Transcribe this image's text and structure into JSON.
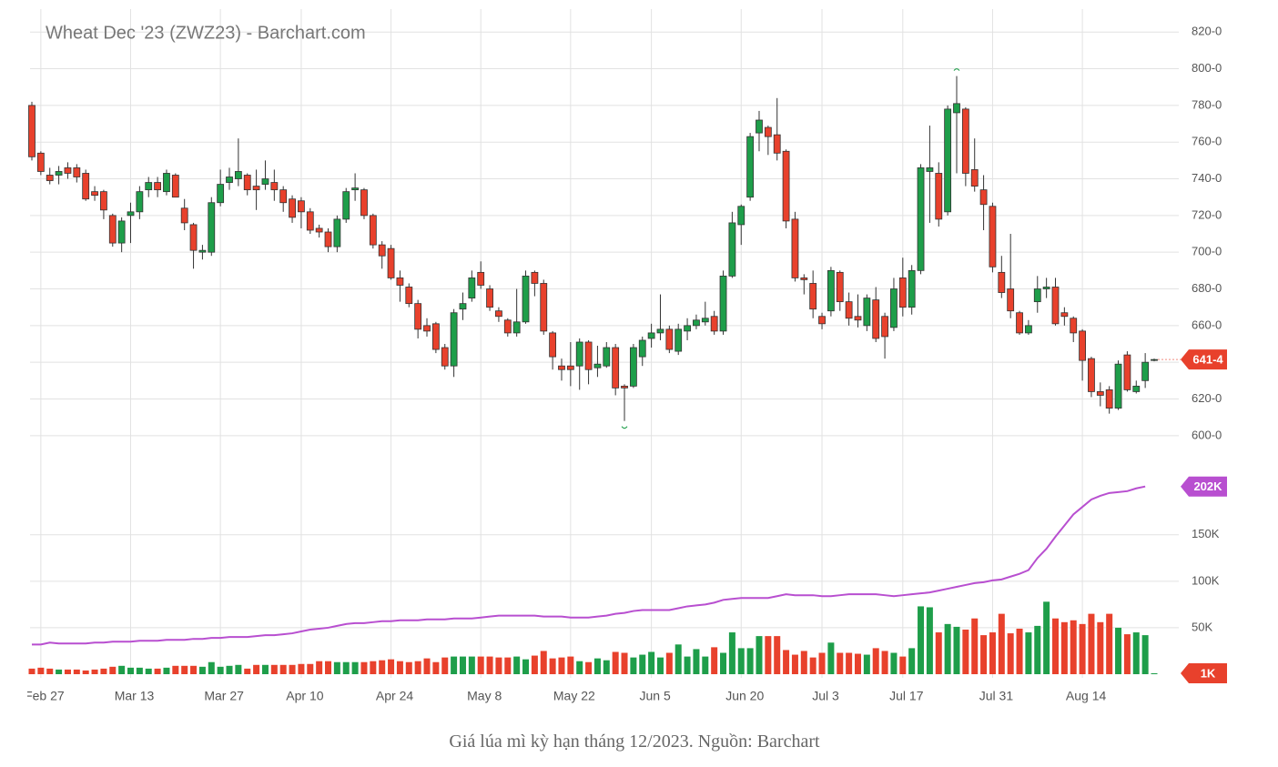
{
  "chart_data": [
    {
      "type": "candlestick",
      "title": "Wheat Dec '23 (ZWZ23) - Barchart.com",
      "up_color": "#1e9e4a",
      "down_color": "#e8412c",
      "open": [
        780,
        754,
        742,
        742,
        746,
        746,
        743,
        733,
        733,
        720,
        705,
        720,
        722,
        734,
        738,
        733,
        742,
        724,
        715,
        700,
        700,
        727,
        738,
        740,
        742,
        736,
        737,
        738,
        734,
        729,
        728,
        722,
        713,
        711,
        703,
        718,
        734,
        734,
        720,
        704,
        702,
        686,
        681,
        672,
        660,
        661,
        648,
        638,
        669,
        675,
        689,
        680,
        668,
        663,
        656,
        662,
        689,
        683,
        656,
        638,
        638,
        638,
        651,
        637,
        638,
        648,
        627,
        627,
        643,
        653,
        656,
        658,
        646,
        657,
        660,
        662,
        665,
        657,
        687,
        715,
        730,
        765,
        768,
        764,
        755,
        718,
        686,
        683,
        665,
        668,
        689,
        673,
        665,
        660,
        674,
        665,
        659,
        686,
        670,
        690,
        744,
        743,
        722,
        776,
        778,
        745,
        734,
        725,
        689,
        680,
        667,
        656,
        673,
        680,
        681,
        667,
        664,
        657,
        642,
        624,
        625,
        615,
        644,
        624,
        630,
        641
      ],
      "high": [
        782,
        755,
        746,
        747,
        749,
        748,
        745,
        736,
        734,
        721,
        719,
        727,
        736,
        741,
        741,
        745,
        743,
        729,
        716,
        704,
        730,
        745,
        746,
        762,
        743,
        745,
        750,
        745,
        736,
        731,
        730,
        724,
        715,
        713,
        720,
        735,
        743,
        735,
        721,
        706,
        704,
        690,
        683,
        674,
        664,
        662,
        650,
        669,
        678,
        690,
        695,
        682,
        670,
        664,
        680,
        690,
        690,
        685,
        657,
        642,
        651,
        653,
        652,
        649,
        651,
        650,
        628,
        650,
        654,
        661,
        677,
        660,
        661,
        664,
        666,
        673,
        668,
        690,
        722,
        726,
        765,
        777,
        769,
        784,
        756,
        722,
        688,
        690,
        667,
        692,
        690,
        678,
        677,
        677,
        681,
        667,
        686,
        697,
        693,
        748,
        769,
        749,
        780,
        796,
        779,
        762,
        742,
        727,
        698,
        710,
        668,
        663,
        687,
        686,
        686,
        670,
        665,
        658,
        643,
        629,
        627,
        641,
        646,
        630,
        645,
        642
      ],
      "low": [
        750,
        742,
        737,
        737,
        740,
        738,
        728,
        728,
        718,
        703,
        700,
        705,
        718,
        730,
        730,
        731,
        730,
        712,
        691,
        696,
        698,
        725,
        734,
        736,
        731,
        723,
        734,
        728,
        722,
        716,
        713,
        710,
        708,
        700,
        700,
        716,
        728,
        718,
        702,
        691,
        685,
        673,
        670,
        653,
        654,
        645,
        636,
        632,
        663,
        673,
        680,
        668,
        662,
        654,
        654,
        661,
        676,
        655,
        636,
        630,
        627,
        625,
        628,
        632,
        637,
        622,
        608,
        626,
        638,
        648,
        652,
        645,
        644,
        652,
        658,
        660,
        655,
        655,
        686,
        704,
        728,
        755,
        753,
        750,
        713,
        684,
        677,
        664,
        658,
        665,
        668,
        660,
        659,
        657,
        651,
        642,
        657,
        665,
        666,
        688,
        716,
        714,
        720,
        743,
        736,
        733,
        712,
        689,
        675,
        664,
        655,
        655,
        667,
        675,
        660,
        660,
        651,
        630,
        621,
        616,
        612,
        614,
        624,
        623,
        626,
        640.5
      ],
      "close": [
        752,
        744,
        739,
        744,
        743,
        741,
        729,
        731,
        723,
        705,
        717,
        722,
        733,
        738,
        734,
        743,
        730,
        716,
        701,
        701,
        727,
        737,
        741,
        744,
        734,
        734,
        740,
        734,
        727,
        719,
        722,
        712,
        711,
        703,
        718,
        733,
        735,
        720,
        704,
        698,
        686,
        682,
        672,
        658,
        657,
        647,
        638,
        667,
        672,
        686,
        682,
        670,
        665,
        656,
        662,
        687,
        683,
        657,
        643,
        636,
        636,
        651,
        636,
        639,
        648,
        626,
        626,
        648,
        652,
        656,
        658,
        647,
        658,
        660,
        663,
        664,
        657,
        687,
        716,
        725,
        763,
        772,
        763,
        754,
        717,
        686,
        685,
        669,
        661,
        690,
        673,
        664,
        663,
        675,
        653,
        654,
        680,
        670,
        690,
        746,
        746,
        718,
        778,
        781,
        743,
        736,
        726,
        692,
        678,
        668,
        656,
        660,
        680,
        681,
        661,
        665,
        656,
        641,
        624,
        622,
        615,
        639,
        625,
        627,
        640,
        641.5
      ],
      "current": {
        "value": 641.5,
        "label": "641-4"
      },
      "ylim": [
        589.5,
        832.5
      ],
      "yticks": [
        {
          "value": 600,
          "label": "600-0"
        },
        {
          "value": 620,
          "label": "620-0"
        },
        {
          "value": 640,
          "label": "640-0"
        },
        {
          "value": 660,
          "label": "660-0"
        },
        {
          "value": 680,
          "label": "680-0"
        },
        {
          "value": 700,
          "label": "700-0"
        },
        {
          "value": 720,
          "label": "720-0"
        },
        {
          "value": 740,
          "label": "740-0"
        },
        {
          "value": 760,
          "label": "760-0"
        },
        {
          "value": 780,
          "label": "780-0"
        },
        {
          "value": 800,
          "label": "800-0"
        },
        {
          "value": 820,
          "label": "820-0"
        }
      ],
      "grid": true
    },
    {
      "type": "bar",
      "categories": [
        null,
        "Feb 27",
        null,
        null,
        null,
        null,
        null,
        null,
        null,
        null,
        null,
        "Mar 13",
        null,
        null,
        null,
        null,
        null,
        null,
        null,
        null,
        null,
        "Mar 27",
        null,
        null,
        null,
        null,
        null,
        null,
        null,
        null,
        "Apr 10",
        null,
        null,
        null,
        null,
        null,
        null,
        null,
        null,
        null,
        "Apr 24",
        null,
        null,
        null,
        null,
        null,
        null,
        null,
        null,
        null,
        "May 8",
        null,
        null,
        null,
        null,
        null,
        null,
        null,
        null,
        null,
        "May 22",
        null,
        null,
        null,
        null,
        null,
        null,
        null,
        null,
        "Jun 5",
        null,
        null,
        null,
        null,
        null,
        null,
        null,
        null,
        null,
        "Jun 20",
        null,
        null,
        null,
        null,
        null,
        null,
        null,
        null,
        "Jul 3",
        null,
        null,
        null,
        null,
        null,
        null,
        null,
        null,
        "Jul 17",
        null,
        null,
        null,
        null,
        null,
        null,
        null,
        null,
        null,
        "Jul 31",
        null,
        null,
        null,
        null,
        null,
        null,
        null,
        null,
        null,
        "Aug 14",
        null,
        null,
        null,
        null,
        null,
        null,
        null,
        null
      ],
      "series": [
        {
          "type": "bar",
          "values": [
            6000,
            7000,
            6000,
            5000,
            5000,
            5000,
            4000,
            5000,
            6000,
            8000,
            9000,
            7000,
            7000,
            6000,
            6000,
            7000,
            9000,
            9000,
            9000,
            8000,
            13000,
            8000,
            9000,
            10000,
            6000,
            10000,
            10000,
            10000,
            10000,
            10000,
            11000,
            11000,
            14000,
            14000,
            13000,
            13000,
            13000,
            13000,
            14000,
            15000,
            16000,
            14000,
            13000,
            14000,
            17000,
            13000,
            18000,
            19000,
            19000,
            19000,
            19000,
            19000,
            18000,
            18000,
            19000,
            16000,
            20000,
            25000,
            17000,
            18000,
            19000,
            14000,
            13000,
            17000,
            15000,
            24000,
            23000,
            18000,
            21000,
            24000,
            18000,
            23000,
            32000,
            19000,
            27000,
            19000,
            29000,
            23000,
            45000,
            28000,
            28000,
            41000,
            41000,
            41000,
            26000,
            21000,
            25000,
            18000,
            23000,
            34000,
            23000,
            23000,
            22000,
            21000,
            28000,
            25000,
            23000,
            19000,
            28000,
            73000,
            72000,
            45000,
            54000,
            51000,
            48000,
            60000,
            42000,
            45000,
            65000,
            44000,
            49000,
            45000,
            52000,
            78000,
            60000,
            56000,
            58000,
            54000,
            65000,
            56000,
            65000,
            50000,
            43000,
            45000,
            42000,
            1000
          ],
          "current": {
            "value": 1000,
            "label": "1K"
          },
          "current_color": "#e8412c"
        },
        {
          "type": "line",
          "color": "#b84fd0",
          "values": [
            32000,
            32000,
            34000,
            33000,
            33000,
            33000,
            33000,
            34000,
            34000,
            35000,
            35000,
            35000,
            36000,
            36000,
            36000,
            37000,
            37000,
            37000,
            38000,
            38000,
            39000,
            39000,
            40000,
            40000,
            40000,
            41000,
            42000,
            42000,
            43000,
            44000,
            46000,
            48000,
            49000,
            50000,
            52000,
            54000,
            55000,
            55000,
            56000,
            57000,
            57000,
            58000,
            58000,
            58000,
            59000,
            59000,
            59000,
            60000,
            60000,
            60000,
            61000,
            62000,
            63000,
            63000,
            63000,
            63000,
            63000,
            62000,
            62000,
            62000,
            61000,
            61000,
            61000,
            62000,
            63000,
            65000,
            66000,
            68000,
            69000,
            69000,
            69000,
            69000,
            71000,
            73000,
            74000,
            75000,
            77000,
            80000,
            81000,
            82000,
            82000,
            82000,
            82000,
            84000,
            86000,
            85000,
            85000,
            85000,
            84000,
            84000,
            85000,
            86000,
            86000,
            86000,
            86000,
            85000,
            84000,
            85000,
            86000,
            87000,
            88000,
            90000,
            92000,
            94000,
            96000,
            98000,
            99000,
            101000,
            102000,
            105000,
            108000,
            112000,
            125000,
            135000,
            148000,
            160000,
            172000,
            180000,
            188000,
            192000,
            195000,
            196000,
            197000,
            200000,
            202000,
            null
          ],
          "current": {
            "value": 202000,
            "label": "202K"
          }
        }
      ],
      "ylim": [
        0,
        235000
      ],
      "yticks": [
        {
          "value": 50000,
          "label": "50K"
        },
        {
          "value": 100000,
          "label": "100K"
        },
        {
          "value": 150000,
          "label": "150K"
        }
      ],
      "grid": true
    }
  ],
  "caption": "Giá lúa mì kỳ hạn tháng 12/2023. Nguồn: Barchart"
}
